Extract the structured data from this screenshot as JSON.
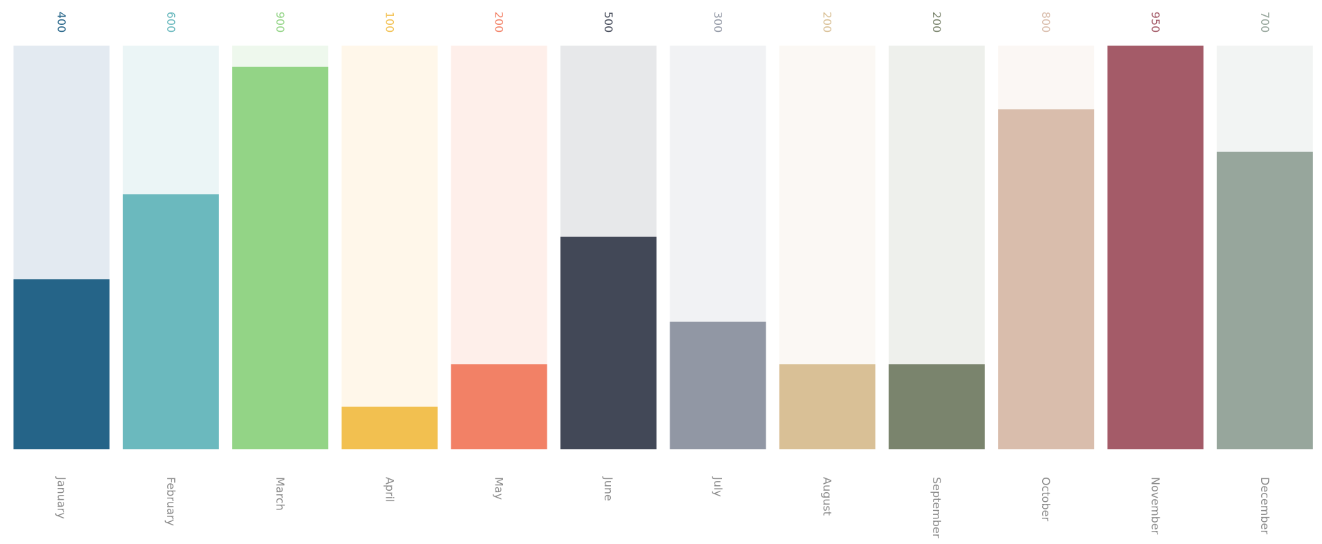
{
  "chart_data": {
    "type": "bar",
    "categories": [
      "January",
      "February",
      "March",
      "April",
      "May",
      "June",
      "July",
      "August",
      "September",
      "October",
      "November",
      "December"
    ],
    "values": [
      400,
      600,
      900,
      100,
      200,
      500,
      300,
      200,
      200,
      800,
      950,
      700
    ],
    "value_labels": [
      "400",
      "600",
      "900",
      "100",
      "200",
      "500",
      "300",
      "200",
      "200",
      "800",
      "950",
      "700"
    ],
    "ylim": [
      0,
      950
    ],
    "grid": false,
    "legend": "none",
    "label_orientation": "vertical",
    "colors": {
      "bars": [
        "#256488",
        "#6bb9be",
        "#93d486",
        "#f2c050",
        "#f28166",
        "#424857",
        "#9197a4",
        "#d9c096",
        "#7a846d",
        "#d9bdac",
        "#a45b68",
        "#97a69c"
      ],
      "tracks": [
        "#e3eaf1",
        "#ebf5f6",
        "#eef8ed",
        "#fff7ea",
        "#feefea",
        "#e7e8ea",
        "#f1f2f4",
        "#fbf8f4",
        "#eef0ec",
        "#fbf7f4",
        "#a45b68",
        "#f2f4f3"
      ],
      "value_labels": [
        "#256488",
        "#6bb9be",
        "#93d486",
        "#f2c050",
        "#f28166",
        "#424857",
        "#9197a4",
        "#d9c096",
        "#7a846d",
        "#d9bdac",
        "#a45b68",
        "#97a69c"
      ],
      "month_labels": "#8a8a8a"
    }
  }
}
